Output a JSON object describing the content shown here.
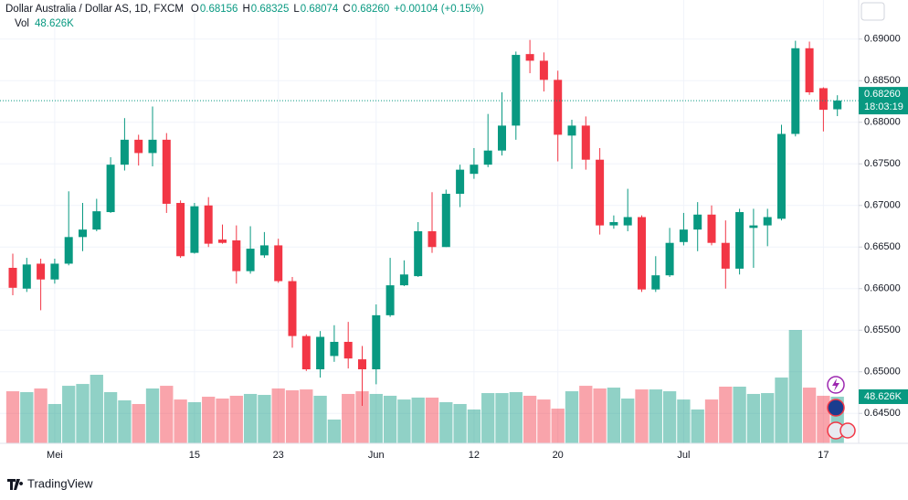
{
  "chart_data": {
    "type": "candlestick",
    "symbol": "Dollar Australia / Dollar AS, 1D, FXCM",
    "ohlc_labels": [
      {
        "key": "O",
        "value": "0.68156"
      },
      {
        "key": "H",
        "value": "0.68325"
      },
      {
        "key": "L",
        "value": "0.68074"
      },
      {
        "key": "C",
        "value": "0.68260"
      }
    ],
    "change": "+0.00104 (+0.15%)",
    "volume_title": "Vol",
    "volume_label": "48.626K",
    "price_label": "0.68260",
    "countdown": "18:03:19",
    "brand": "TradingView",
    "up_color": "#089981",
    "down_color": "#f23645",
    "categories": [
      null,
      null,
      null,
      "Mei",
      null,
      null,
      null,
      null,
      null,
      null,
      null,
      null,
      null,
      "15",
      null,
      null,
      null,
      null,
      null,
      "23",
      null,
      null,
      null,
      null,
      null,
      null,
      "Jun",
      null,
      null,
      null,
      null,
      null,
      null,
      "12",
      null,
      null,
      null,
      null,
      null,
      "20",
      null,
      null,
      null,
      null,
      null,
      null,
      null,
      null,
      "Jul",
      null,
      null,
      null,
      null,
      null,
      null,
      null,
      null,
      null,
      "17",
      null
    ],
    "open": [
      0.6625,
      0.66,
      0.663,
      0.6611,
      0.663,
      0.6662,
      0.6671,
      0.6692,
      0.6749,
      0.6779,
      0.6763,
      0.6779,
      0.6703,
      0.6643,
      0.67,
      0.6659,
      0.6658,
      0.6621,
      0.664,
      0.6652,
      0.6609,
      0.6543,
      0.6503,
      0.6519,
      0.6536,
      0.6515,
      0.6503,
      0.6568,
      0.6604,
      0.6615,
      0.6669,
      0.665,
      0.6714,
      0.6738,
      0.6749,
      0.6766,
      0.6796,
      0.6882,
      0.6874,
      0.6851,
      0.6784,
      0.6796,
      0.6755,
      0.6676,
      0.6676,
      0.6686,
      0.6599,
      0.6616,
      0.6656,
      0.6671,
      0.6689,
      0.6655,
      0.6624,
      0.6673,
      0.6676,
      0.6684,
      0.6786,
      0.6889,
      0.6841,
      0.68156
    ],
    "high": [
      0.6642,
      0.6637,
      0.6636,
      0.6636,
      0.6717,
      0.6703,
      0.6708,
      0.6758,
      0.6805,
      0.6785,
      0.6819,
      0.6787,
      0.6706,
      0.6703,
      0.671,
      0.6677,
      0.6676,
      0.6675,
      0.6668,
      0.666,
      0.6614,
      0.6545,
      0.6549,
      0.6556,
      0.656,
      0.6531,
      0.6581,
      0.6637,
      0.6634,
      0.668,
      0.6716,
      0.6719,
      0.6749,
      0.6769,
      0.681,
      0.6836,
      0.6885,
      0.6899,
      0.6884,
      0.6862,
      0.6803,
      0.6807,
      0.6769,
      0.6688,
      0.672,
      0.6688,
      0.6639,
      0.6673,
      0.6691,
      0.6704,
      0.67,
      0.6682,
      0.6696,
      0.6696,
      0.6696,
      0.6797,
      0.6898,
      0.6897,
      0.6842,
      0.68325
    ],
    "low": [
      0.6592,
      0.6596,
      0.6574,
      0.6606,
      0.6628,
      0.6645,
      0.6669,
      0.6691,
      0.6742,
      0.6748,
      0.6747,
      0.6691,
      0.6637,
      0.6642,
      0.665,
      0.6654,
      0.6606,
      0.6618,
      0.6637,
      0.6607,
      0.6529,
      0.6501,
      0.6493,
      0.6512,
      0.6504,
      0.6459,
      0.6485,
      0.6566,
      0.6603,
      0.6614,
      0.6643,
      0.665,
      0.6698,
      0.6732,
      0.6746,
      0.676,
      0.6779,
      0.6859,
      0.6837,
      0.6753,
      0.6744,
      0.6743,
      0.6665,
      0.6672,
      0.6669,
      0.6596,
      0.6596,
      0.6614,
      0.6652,
      0.6645,
      0.6652,
      0.66,
      0.6617,
      0.6625,
      0.6651,
      0.6682,
      0.6783,
      0.6833,
      0.6789,
      0.68074
    ],
    "close": [
      0.6601,
      0.6629,
      0.6611,
      0.663,
      0.6662,
      0.6671,
      0.6693,
      0.6749,
      0.6779,
      0.6763,
      0.6779,
      0.6702,
      0.6639,
      0.6699,
      0.6654,
      0.6655,
      0.6621,
      0.6648,
      0.6652,
      0.6609,
      0.6543,
      0.6503,
      0.6542,
      0.6536,
      0.6516,
      0.6503,
      0.6568,
      0.6604,
      0.6617,
      0.6669,
      0.665,
      0.6714,
      0.6743,
      0.6749,
      0.6766,
      0.6796,
      0.6881,
      0.6874,
      0.6851,
      0.6785,
      0.6796,
      0.6755,
      0.6676,
      0.668,
      0.6686,
      0.6599,
      0.6616,
      0.6655,
      0.6671,
      0.6689,
      0.6655,
      0.6624,
      0.6692,
      0.6676,
      0.6686,
      0.6786,
      0.6889,
      0.6836,
      0.6815,
      0.6826
    ],
    "volume": [
      54300,
      53400,
      57200,
      41000,
      60000,
      61900,
      71500,
      53400,
      44800,
      41000,
      57200,
      60000,
      45700,
      42900,
      48600,
      46700,
      49600,
      51500,
      50500,
      57200,
      55300,
      56200,
      49600,
      24800,
      51500,
      54300,
      51500,
      49600,
      45700,
      47700,
      47700,
      42900,
      41000,
      35300,
      52400,
      52400,
      53400,
      49600,
      45700,
      36200,
      54300,
      60000,
      57200,
      58100,
      46700,
      56200,
      56200,
      54300,
      45700,
      35300,
      45700,
      59100,
      59100,
      51500,
      52400,
      68600,
      118200,
      58100,
      49600,
      48626
    ],
    "ylim": [
      0.6414,
      0.6947
    ],
    "yticks": [
      {
        "value": 0.645,
        "label": "0.64500"
      },
      {
        "value": 0.65,
        "label": "0.65000"
      },
      {
        "value": 0.655,
        "label": "0.65500"
      },
      {
        "value": 0.66,
        "label": "0.66000"
      },
      {
        "value": 0.665,
        "label": "0.66500"
      },
      {
        "value": 0.67,
        "label": "0.67000"
      },
      {
        "value": 0.675,
        "label": "0.67500"
      },
      {
        "value": 0.68,
        "label": "0.68000"
      },
      {
        "value": 0.685,
        "label": "0.68500"
      },
      {
        "value": 0.69,
        "label": "0.69000"
      }
    ],
    "grid": true
  }
}
